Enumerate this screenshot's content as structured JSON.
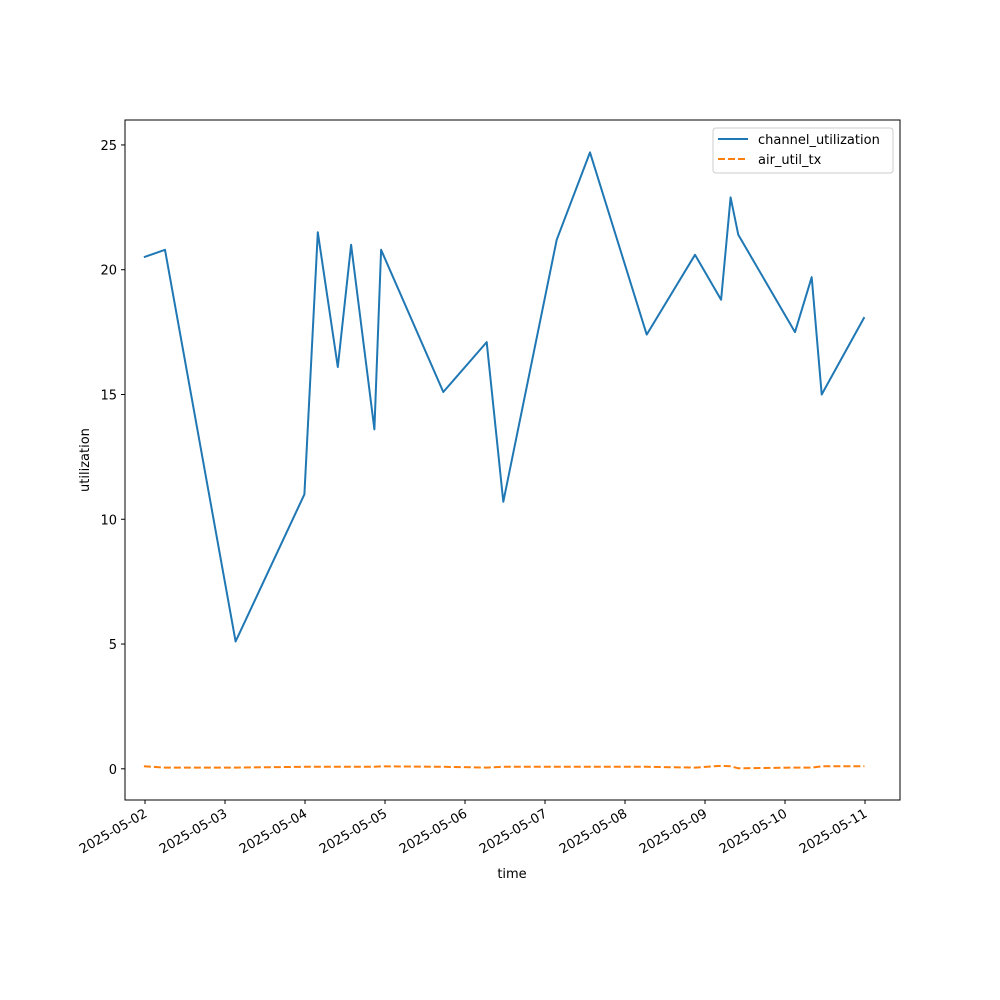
{
  "chart_data": {
    "type": "line",
    "title": "",
    "xlabel": "time",
    "ylabel": "utilization",
    "xlim": [
      "2025-05-01 18:00",
      "2025-05-11 10:30"
    ],
    "ylim": [
      -1.25,
      26
    ],
    "xticks": [
      "2025-05-02",
      "2025-05-03",
      "2025-05-04",
      "2025-05-05",
      "2025-05-06",
      "2025-05-07",
      "2025-05-08",
      "2025-05-09",
      "2025-05-10",
      "2025-05-11"
    ],
    "yticks": [
      0,
      5,
      10,
      15,
      20,
      25
    ],
    "grid": false,
    "legend_position": "top-right",
    "series": [
      {
        "name": "channel_utilization",
        "color": "#1f77b4",
        "style": "solid",
        "points": [
          [
            "2025-05-01 23:40",
            20.5
          ],
          [
            "2025-05-02 06:00",
            20.8
          ],
          [
            "2025-05-03 03:10",
            5.1
          ],
          [
            "2025-05-03 23:50",
            11.0
          ],
          [
            "2025-05-04 03:50",
            21.5
          ],
          [
            "2025-05-04 09:50",
            16.1
          ],
          [
            "2025-05-04 13:50",
            21.0
          ],
          [
            "2025-05-04 20:50",
            13.6
          ],
          [
            "2025-05-04 22:50",
            20.8
          ],
          [
            "2025-05-05 17:30",
            15.1
          ],
          [
            "2025-05-06 06:30",
            17.1
          ],
          [
            "2025-05-06 11:30",
            10.7
          ],
          [
            "2025-05-07 03:30",
            21.2
          ],
          [
            "2025-05-07 13:30",
            24.7
          ],
          [
            "2025-05-08 06:30",
            17.4
          ],
          [
            "2025-05-08 21:00",
            20.6
          ],
          [
            "2025-05-09 04:50",
            18.8
          ],
          [
            "2025-05-09 07:40",
            22.9
          ],
          [
            "2025-05-09 10:00",
            21.4
          ],
          [
            "2025-05-10 03:00",
            17.5
          ],
          [
            "2025-05-10 08:00",
            19.7
          ],
          [
            "2025-05-10 11:00",
            15.0
          ],
          [
            "2025-05-10 23:50",
            18.1
          ]
        ]
      },
      {
        "name": "air_util_tx",
        "color": "#ff7f0e",
        "style": "dashed",
        "points": [
          [
            "2025-05-01 23:40",
            0.1
          ],
          [
            "2025-05-02 06:00",
            0.05
          ],
          [
            "2025-05-03 03:10",
            0.05
          ],
          [
            "2025-05-03 23:50",
            0.08
          ],
          [
            "2025-05-04 03:50",
            0.08
          ],
          [
            "2025-05-04 09:50",
            0.08
          ],
          [
            "2025-05-04 13:50",
            0.08
          ],
          [
            "2025-05-04 20:50",
            0.08
          ],
          [
            "2025-05-04 22:50",
            0.1
          ],
          [
            "2025-05-05 17:30",
            0.08
          ],
          [
            "2025-05-06 06:30",
            0.05
          ],
          [
            "2025-05-06 11:30",
            0.08
          ],
          [
            "2025-05-07 03:30",
            0.08
          ],
          [
            "2025-05-07 13:30",
            0.08
          ],
          [
            "2025-05-08 06:30",
            0.08
          ],
          [
            "2025-05-08 21:00",
            0.05
          ],
          [
            "2025-05-09 04:50",
            0.12
          ],
          [
            "2025-05-09 07:40",
            0.1
          ],
          [
            "2025-05-09 10:00",
            0.02
          ],
          [
            "2025-05-10 03:00",
            0.05
          ],
          [
            "2025-05-10 08:00",
            0.05
          ],
          [
            "2025-05-10 11:00",
            0.1
          ],
          [
            "2025-05-10 23:50",
            0.1
          ]
        ]
      }
    ]
  }
}
